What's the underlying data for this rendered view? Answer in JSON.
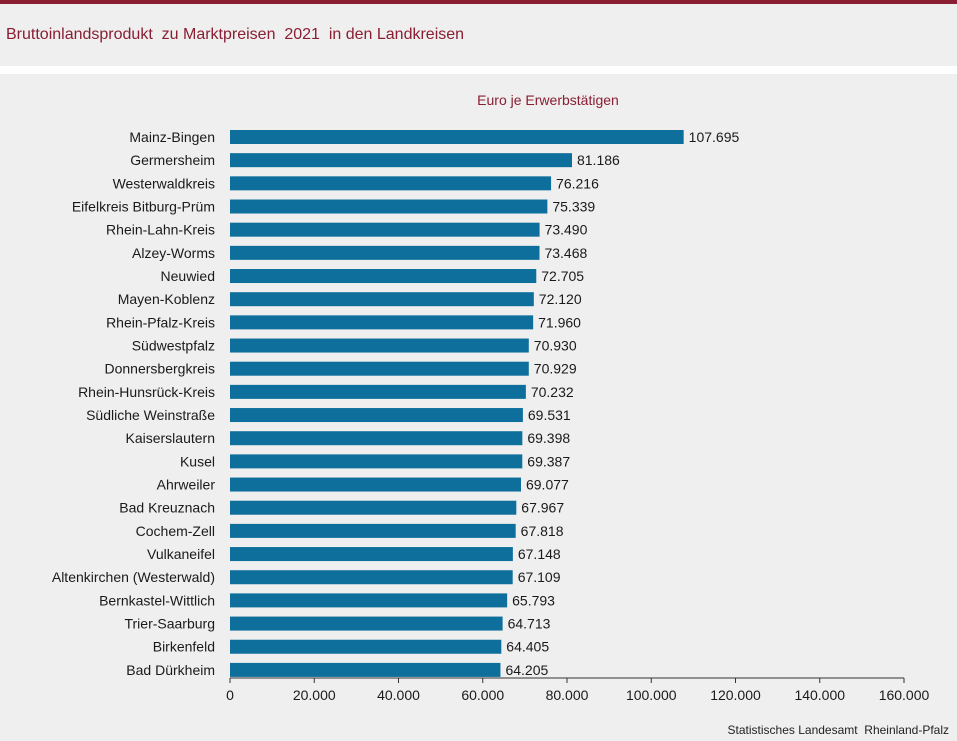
{
  "header": {
    "title": "Bruttoinlandsprodukt  zu Marktpreisen  2021  in den Landkreisen"
  },
  "footer": {
    "source": "Statistisches Landesamt  Rheinland-Pfalz"
  },
  "colors": {
    "accent": "#8a1e33",
    "bar": "#0e6f9c"
  },
  "chart_data": {
    "type": "bar",
    "orientation": "horizontal",
    "title": "Euro je Erwerbstätigen",
    "xlabel": "",
    "ylabel": "",
    "xlim": [
      0,
      160000
    ],
    "x_ticks": [
      0,
      20000,
      40000,
      60000,
      80000,
      100000,
      120000,
      140000,
      160000
    ],
    "x_tick_labels": [
      "0",
      "20.000",
      "40.000",
      "60.000",
      "80.000",
      "100.000",
      "120.000",
      "140.000",
      "160.000"
    ],
    "grid": false,
    "categories": [
      "Mainz-Bingen",
      "Germersheim",
      "Westerwaldkreis",
      "Eifelkreis Bitburg-Prüm",
      "Rhein-Lahn-Kreis",
      "Alzey-Worms",
      "Neuwied",
      "Mayen-Koblenz",
      "Rhein-Pfalz-Kreis",
      "Südwestpfalz",
      "Donnersbergkreis",
      "Rhein-Hunsrück-Kreis",
      "Südliche Weinstraße",
      "Kaiserslautern",
      "Kusel",
      "Ahrweiler",
      "Bad Kreuznach",
      "Cochem-Zell",
      "Vulkaneifel",
      "Altenkirchen (Westerwald)",
      "Bernkastel-Wittlich",
      "Trier-Saarburg",
      "Birkenfeld",
      "Bad Dürkheim"
    ],
    "values": [
      107695,
      81186,
      76216,
      75339,
      73490,
      73468,
      72705,
      72120,
      71960,
      70930,
      70929,
      70232,
      69531,
      69398,
      69387,
      69077,
      67967,
      67818,
      67148,
      67109,
      65793,
      64713,
      64405,
      64205
    ],
    "value_labels": [
      "107.695",
      "81.186",
      "76.216",
      "75.339",
      "73.490",
      "73.468",
      "72.705",
      "72.120",
      "71.960",
      "70.930",
      "70.929",
      "70.232",
      "69.531",
      "69.398",
      "69.387",
      "69.077",
      "67.967",
      "67.818",
      "67.148",
      "67.109",
      "65.793",
      "64.713",
      "64.405",
      "64.205"
    ]
  }
}
